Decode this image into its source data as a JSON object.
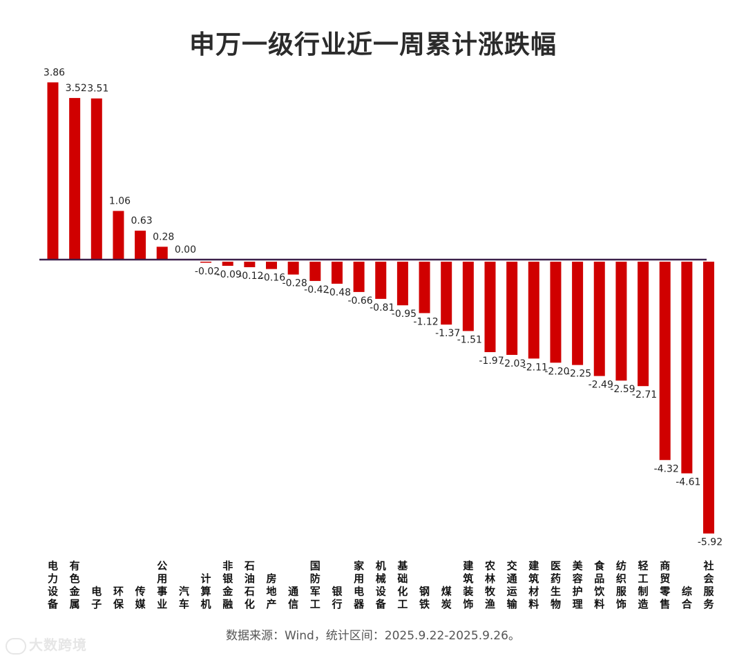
{
  "title": "申万一级行业近一周累计涨跌幅",
  "source": "数据来源：Wind，统计区间：2025.9.22-2025.9.26。",
  "watermark": "大数跨境",
  "colors": {
    "bar": "#d00000",
    "axis": "#3a1f4a",
    "text": "#222222"
  },
  "chart_data": {
    "type": "bar",
    "title": "申万一级行业近一周累计涨跌幅",
    "categories": [
      "电力设备",
      "有色金属",
      "电子",
      "环保",
      "传媒",
      "公用事业",
      "汽车",
      "计算机",
      "非银金融",
      "石油石化",
      "房地产",
      "通信",
      "国防军工",
      "银行",
      "家用电器",
      "机械设备",
      "基础化工",
      "钢铁",
      "煤炭",
      "建筑装饰",
      "农林牧渔",
      "交通运输",
      "建筑材料",
      "医药生物",
      "美容护理",
      "食品饮料",
      "纺织服饰",
      "轻工制造",
      "商贸零售",
      "综合",
      "社会服务"
    ],
    "values": [
      3.86,
      3.52,
      3.51,
      1.06,
      0.63,
      0.28,
      0.0,
      -0.02,
      -0.09,
      -0.12,
      -0.16,
      -0.28,
      -0.42,
      -0.48,
      -0.66,
      -0.81,
      -0.95,
      -1.12,
      -1.37,
      -1.51,
      -1.97,
      -2.03,
      -2.11,
      -2.2,
      -2.25,
      -2.49,
      -2.59,
      -2.71,
      -4.32,
      -4.61,
      -5.92
    ],
    "labels": [
      "3.86",
      "3.52",
      "3.51",
      "1.06",
      "0.63",
      "0.28",
      "0.00",
      "-0.02",
      "-0.09",
      "-0.12",
      "-0.16",
      "-0.28",
      "-0.42",
      "-0.48",
      "-0.66",
      "-0.81",
      "-0.95",
      "-1.12",
      "-1.37",
      "-1.51",
      "-1.97",
      "-2.03",
      "-2.11",
      "-2.20",
      "-2.25",
      "-2.49",
      "-2.59",
      "-2.71",
      "-4.32",
      "-4.61",
      "-5.92"
    ],
    "xlabel": "",
    "ylabel": "",
    "grid": false,
    "legend": "none"
  }
}
